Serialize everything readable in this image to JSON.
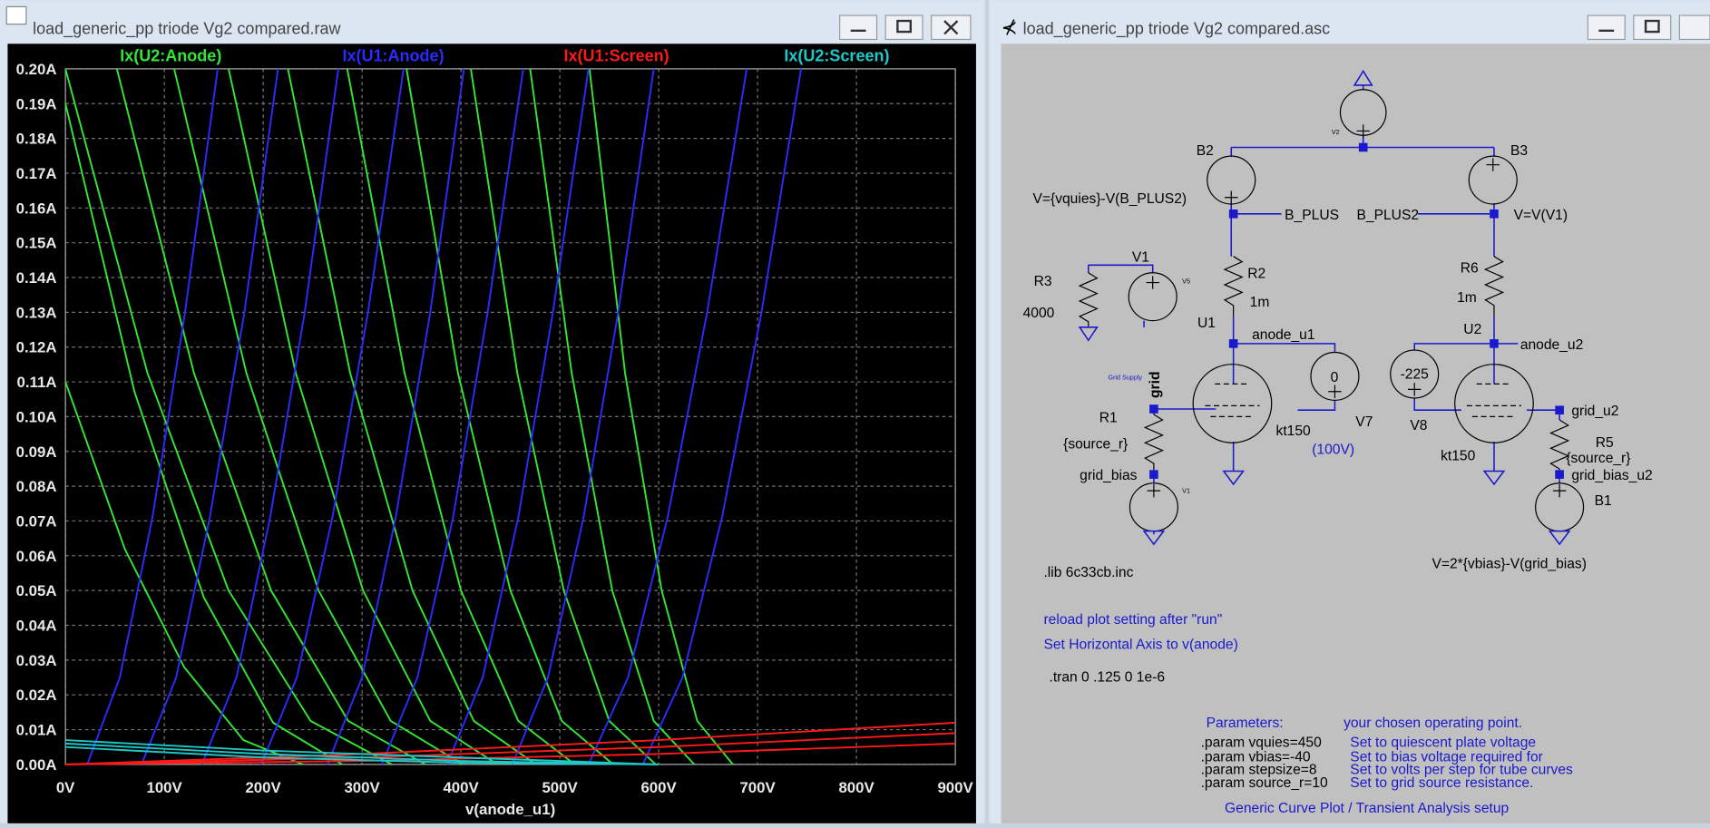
{
  "windows": [
    {
      "title": "load_generic_pp triode Vg2 compared.raw"
    },
    {
      "title": "load_generic_pp triode Vg2 compared.asc"
    }
  ],
  "chart_data": {
    "type": "line",
    "xlabel": "v(anode_u1)",
    "xlim": [
      0,
      900
    ],
    "ylim": [
      0,
      0.2
    ],
    "grid": true,
    "xticks": [
      {
        "value": 0,
        "label": "0V"
      },
      {
        "value": 100,
        "label": "100V"
      },
      {
        "value": 200,
        "label": "200V"
      },
      {
        "value": 300,
        "label": "300V"
      },
      {
        "value": 400,
        "label": "400V"
      },
      {
        "value": 500,
        "label": "500V"
      },
      {
        "value": 600,
        "label": "600V"
      },
      {
        "value": 700,
        "label": "700V"
      },
      {
        "value": 800,
        "label": "800V"
      },
      {
        "value": 900,
        "label": "900V"
      }
    ],
    "yticks": [
      {
        "value": 0,
        "label": "0.00A"
      },
      {
        "value": 0.01,
        "label": "0.01A"
      },
      {
        "value": 0.02,
        "label": "0.02A"
      },
      {
        "value": 0.03,
        "label": "0.03A"
      },
      {
        "value": 0.04,
        "label": "0.04A"
      },
      {
        "value": 0.05,
        "label": "0.05A"
      },
      {
        "value": 0.06,
        "label": "0.06A"
      },
      {
        "value": 0.07,
        "label": "0.07A"
      },
      {
        "value": 0.08,
        "label": "0.08A"
      },
      {
        "value": 0.09,
        "label": "0.09A"
      },
      {
        "value": 0.1,
        "label": "0.10A"
      },
      {
        "value": 0.11,
        "label": "0.11A"
      },
      {
        "value": 0.12,
        "label": "0.12A"
      },
      {
        "value": 0.13,
        "label": "0.13A"
      },
      {
        "value": 0.14,
        "label": "0.14A"
      },
      {
        "value": 0.15,
        "label": "0.15A"
      },
      {
        "value": 0.16,
        "label": "0.16A"
      },
      {
        "value": 0.17,
        "label": "0.17A"
      },
      {
        "value": 0.18,
        "label": "0.18A"
      },
      {
        "value": 0.19,
        "label": "0.19A"
      },
      {
        "value": 0.2,
        "label": "0.20A"
      }
    ],
    "series": [
      {
        "name": "Ix(U2:Anode)",
        "color": "#33e633",
        "curves": [
          {
            "x": [
              0,
              60,
              120,
              180,
              240
            ],
            "values": [
              0.11,
              0.062,
              0.028,
              0.007,
              0
            ]
          },
          {
            "x": [
              0,
              70,
              140,
              210,
              280
            ],
            "values": [
              0.19,
              0.107,
              0.048,
              0.012,
              0
            ]
          },
          {
            "x": [
              0,
              83,
              165,
              248,
              330
            ],
            "values": [
              0.2,
              0.1125,
              0.05,
              0.0125,
              0
            ]
          },
          {
            "x": [
              52,
              130,
              208,
              286,
              364
            ],
            "values": [
              0.2,
              0.1125,
              0.05,
              0.0125,
              0
            ]
          },
          {
            "x": [
              110,
              183,
              256,
              329,
              402
            ],
            "values": [
              0.2,
              0.1125,
              0.05,
              0.0125,
              0
            ]
          },
          {
            "x": [
              165,
              233,
              301,
              369,
              437
            ],
            "values": [
              0.2,
              0.1125,
              0.05,
              0.0125,
              0
            ]
          },
          {
            "x": [
              225,
              288,
              351,
              413,
              476
            ],
            "values": [
              0.2,
              0.1125,
              0.05,
              0.0125,
              0
            ]
          },
          {
            "x": [
              285,
              343,
              400,
              458,
              515
            ],
            "values": [
              0.2,
              0.1125,
              0.05,
              0.0125,
              0
            ]
          },
          {
            "x": [
              345,
              397,
              450,
              502,
              554
            ],
            "values": [
              0.2,
              0.1125,
              0.05,
              0.0125,
              0
            ]
          },
          {
            "x": [
              410,
              457,
              504,
              550,
              597
            ],
            "values": [
              0.2,
              0.1125,
              0.05,
              0.0125,
              0
            ]
          },
          {
            "x": [
              470,
              512,
              553,
              595,
              636
            ],
            "values": [
              0.2,
              0.1125,
              0.05,
              0.0125,
              0
            ]
          },
          {
            "x": [
              530,
              566,
              603,
              639,
              675
            ],
            "values": [
              0.2,
              0.1125,
              0.05,
              0.0125,
              0
            ]
          }
        ]
      },
      {
        "name": "Ix(U1:Anode)",
        "color": "#2b2bff",
        "curves": [
          {
            "x": [
              22,
              55,
              88,
              121,
              154
            ],
            "values": [
              0,
              0.025,
              0.071,
              0.13,
              0.2
            ]
          },
          {
            "x": [
              77,
              112,
              146,
              181,
              215
            ],
            "values": [
              0,
              0.025,
              0.071,
              0.13,
              0.2
            ]
          },
          {
            "x": [
              138,
              173,
              207,
              242,
              276
            ],
            "values": [
              0,
              0.025,
              0.071,
              0.13,
              0.2
            ]
          },
          {
            "x": [
              198,
              234,
              270,
              306,
              342
            ],
            "values": [
              0,
              0.025,
              0.071,
              0.13,
              0.2
            ]
          },
          {
            "x": [
              265,
              300,
              334,
              369,
              403
            ],
            "values": [
              0,
              0.025,
              0.071,
              0.13,
              0.2
            ]
          },
          {
            "x": [
              320,
              356,
              392,
              427,
              463
            ],
            "values": [
              0,
              0.025,
              0.071,
              0.13,
              0.2
            ]
          },
          {
            "x": [
              386,
              422,
              458,
              493,
              529
            ],
            "values": [
              0,
              0.025,
              0.071,
              0.13,
              0.2
            ]
          },
          {
            "x": [
              452,
              488,
              524,
              559,
              595
            ],
            "values": [
              0,
              0.025,
              0.071,
              0.13,
              0.2
            ]
          },
          {
            "x": [
              529,
              569,
              609,
              649,
              689
            ],
            "values": [
              0,
              0.025,
              0.071,
              0.13,
              0.2
            ]
          },
          {
            "x": [
              584,
              624,
              664,
              704,
              744
            ],
            "values": [
              0,
              0.025,
              0.071,
              0.13,
              0.2
            ]
          }
        ]
      },
      {
        "name": "Ix(U1:Screen)",
        "color": "#ff1a1a",
        "curves": [
          {
            "x": [
              0,
              300,
              600,
              900
            ],
            "values": [
              0,
              0.003,
              0.007,
              0.012
            ]
          },
          {
            "x": [
              0,
              300,
              600,
              900
            ],
            "values": [
              0,
              0.002,
              0.005,
              0.009
            ]
          },
          {
            "x": [
              0,
              300,
              600,
              900
            ],
            "values": [
              0,
              0.001,
              0.003,
              0.006
            ]
          }
        ]
      },
      {
        "name": "Ix(U2:Screen)",
        "color": "#1ec8c8",
        "curves": [
          {
            "x": [
              0,
              200,
              400,
              600
            ],
            "values": [
              0.007,
              0.004,
              0.002,
              0
            ]
          },
          {
            "x": [
              0,
              200,
              400,
              600
            ],
            "values": [
              0.006,
              0.003,
              0.001,
              0
            ]
          },
          {
            "x": [
              0,
              200,
              400,
              600
            ],
            "values": [
              0.005,
              0.002,
              0.0005,
              0
            ]
          }
        ]
      }
    ]
  },
  "schematic": {
    "texts": [
      "V2",
      "B2",
      "B3",
      "V={vquies}-V(B_PLUS2)",
      "B_PLUS",
      "B_PLUS2",
      "V=V(V1)",
      "V1",
      "V5",
      "R3",
      "4000",
      "R2",
      "1m",
      "R6",
      "1m",
      "U1",
      "anode_u1",
      "U2",
      "anode_u2",
      "0",
      "-225",
      "Grid Supply",
      "grid",
      "R1",
      "{source_r}",
      "V7",
      "kt150",
      "(100V)",
      "V8",
      "grid_u2",
      "kt150",
      "R5",
      "{source_r}",
      "grid_bias",
      "grid_bias_u2",
      "B1",
      "V1",
      ".lib 6c33cb.inc",
      "V=2*{vbias}-V(grid_bias)",
      "reload plot setting after \"run\"",
      "Set Horizontal Axis to v(anode)",
      ".tran 0 .125 0 1e-6",
      "Parameters:",
      "your chosen operating point.",
      ".param vquies=450",
      ".param vbias=-40",
      ".param stepsize=8",
      ".param source_r=10",
      "Set to quiescent plate voltage",
      "Set to bias voltage required for",
      "Set to volts per step for tube curves",
      "Set to grid source resistance.",
      "Generic Curve Plot / Transient Analysis setup"
    ]
  }
}
